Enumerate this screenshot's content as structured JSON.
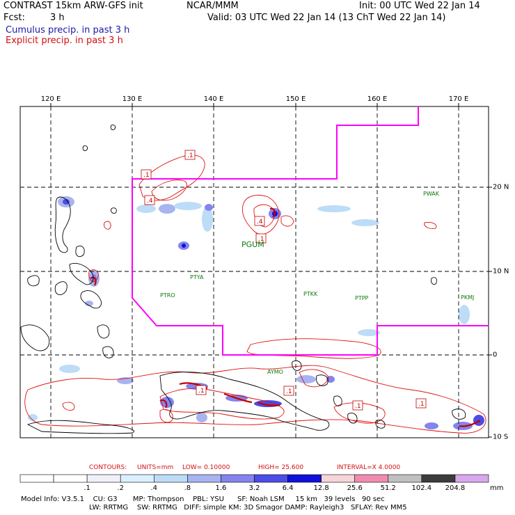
{
  "header": {
    "title": "CONTRAST 15km ARW-GFS init",
    "org": "NCAR/MMM",
    "init": "Init: 00 UTC Wed 22 Jan 14",
    "fcst_label": "Fcst:",
    "fcst_value": "3 h",
    "valid": "Valid: 03 UTC Wed 22 Jan 14 (13 ChT Wed 22 Jan 14)",
    "legend_cumulus": "Cumulus precip. in past 3 h",
    "legend_explicit": "Explicit precip. in past 3 h"
  },
  "axes": {
    "lon_labels": [
      "120 E",
      "130 E",
      "140 E",
      "150 E",
      "160 E",
      "170 E"
    ],
    "lat_labels": [
      "20 N",
      "10 N",
      "0",
      "10 S"
    ]
  },
  "stations": [
    "PWAK",
    "PGUM",
    "PTYA",
    "PTRO",
    "PTKK",
    "PTPP",
    "PKMJ",
    "AYMO"
  ],
  "contour_labels": [
    ".1",
    ".1",
    ".4",
    ".4",
    ".1",
    ".1",
    ".1",
    ".1",
    ".1"
  ],
  "contours": {
    "label": "CONTOURS:",
    "units": "UNITS=mm",
    "low": "LOW= 0.10000",
    "high": "HIGH= 25.600",
    "interval": "INTERVAL=X 4.0000"
  },
  "scale": {
    "labels": [
      ".1",
      ".2",
      ".4",
      ".8",
      "1.6",
      "3.2",
      "6.4",
      "12.8",
      "25.6",
      "51.2",
      "102.4",
      "204.8"
    ],
    "units": "mm",
    "colors": [
      "#ffffff",
      "#ffffff",
      "#f0f0fb",
      "#dcefff",
      "#bcdcf7",
      "#a8b4f0",
      "#8484ee",
      "#4c4ce6",
      "#1010dc",
      "#f6d4d8",
      "#f08cb0",
      "#c0c0c0",
      "#3c3c3c",
      "#d8a8ec"
    ]
  },
  "footer": {
    "line1": "Model Info: V3.5.1    CU: G3       MP: Thompson    PBL: YSU      SF: Noah LSM     15 km   39 levels   90 sec",
    "line2": "LW: RRTMG    SW: RRTMG   DIFF: simple KM: 3D Smagor DAMP: Rayleigh3   SFLAY: Rev MM5"
  },
  "colors": {
    "domain_boundary": "#ff00ff",
    "explicit": "#e01010",
    "cumulus": "#1a1aa6",
    "station": "#0a7a0a"
  }
}
